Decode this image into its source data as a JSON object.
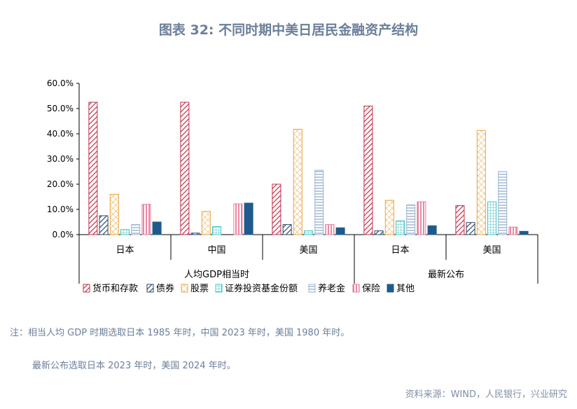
{
  "title": "图表 32: 不同时期中美日居民金融资产结构",
  "notes": [
    "注：相当人均 GDP 时期选取日本 1985 年时，中国 2023 年时，美国 1980 年时。",
    "最新公布选取日本 2023 年时，美国 2024 年时。"
  ],
  "source": "资料来源：WIND，人民银行，兴业研究",
  "chart_data": {
    "type": "bar",
    "ylim": [
      0,
      60
    ],
    "yticks": [
      "0.0%",
      "10.0%",
      "20.0%",
      "30.0%",
      "40.0%",
      "50.0%",
      "60.0%"
    ],
    "groups": [
      {
        "label": "人均GDP相当时",
        "categories": [
          "日本",
          "中国",
          "美国"
        ]
      },
      {
        "label": "最新公布",
        "categories": [
          "日本",
          "美国"
        ]
      }
    ],
    "categories": [
      "日本",
      "中国",
      "美国",
      "日本",
      "美国"
    ],
    "series": [
      {
        "name": "货币和存款",
        "color": "#c0304a",
        "pattern": "diag-red",
        "values": [
          52.5,
          52.5,
          20.0,
          51.0,
          11.5
        ]
      },
      {
        "name": "债券",
        "color": "#2e4a6b",
        "pattern": "diag-navy",
        "values": [
          7.5,
          0.6,
          4.0,
          1.5,
          4.8
        ]
      },
      {
        "name": "股票",
        "color": "#e9a23a",
        "pattern": "cross-orange",
        "values": [
          16.0,
          9.2,
          41.8,
          13.6,
          41.3
        ]
      },
      {
        "name": "证券投资基金份额",
        "color": "#45c4c4",
        "pattern": "grid-teal",
        "values": [
          2.0,
          3.2,
          1.5,
          5.5,
          13.0
        ]
      },
      {
        "name": "养老金",
        "color": "#9ab3cf",
        "pattern": "hline-blue",
        "values": [
          4.0,
          0.0,
          25.5,
          11.8,
          25.0
        ]
      },
      {
        "name": "保险",
        "color": "#e77b9a",
        "pattern": "vline-pink",
        "values": [
          12.0,
          12.2,
          4.0,
          13.0,
          3.0
        ]
      },
      {
        "name": "其他",
        "color": "#1f5a8c",
        "pattern": "solid-blue",
        "values": [
          5.0,
          12.5,
          2.7,
          3.5,
          1.3
        ]
      }
    ]
  }
}
